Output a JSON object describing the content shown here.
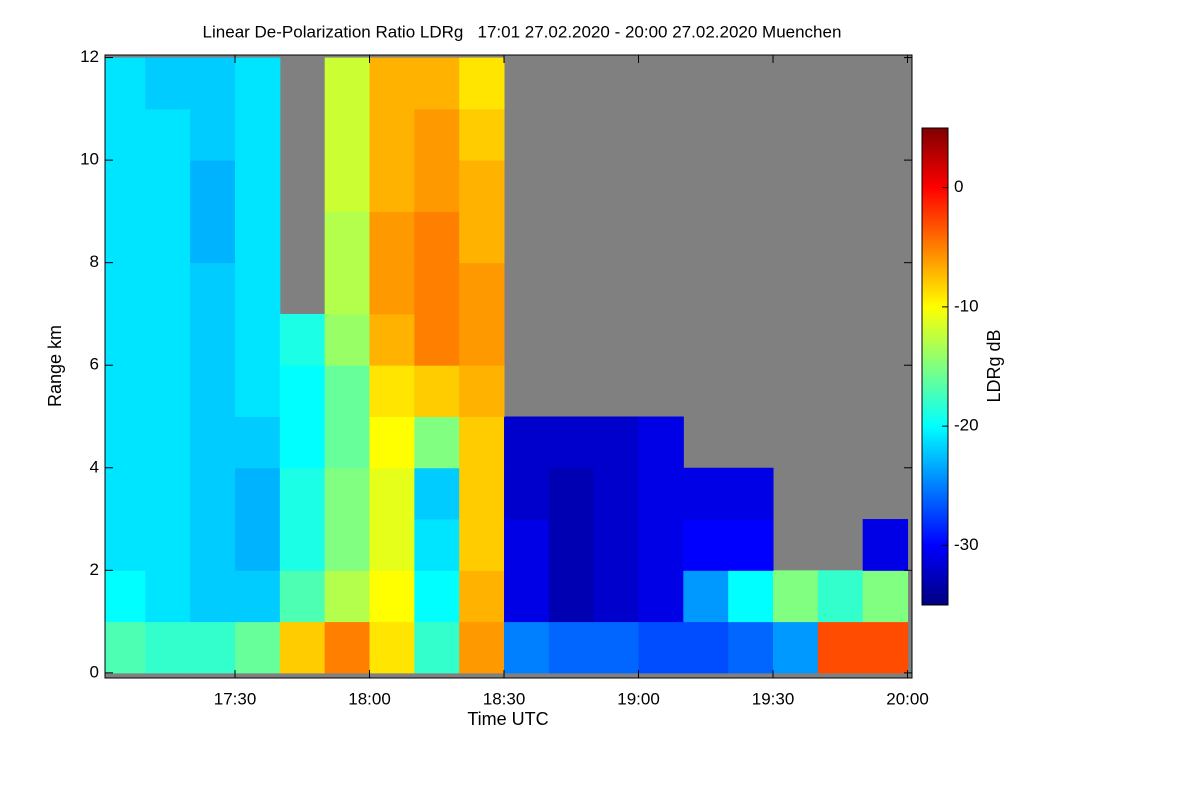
{
  "chart_data": {
    "type": "heatmap",
    "title": "Linear De-Polarization Ratio LDRg   17:01 27.02.2020 - 20:00 27.02.2020 Muenchen",
    "x_label": "Time UTC",
    "y_label": "Range km",
    "colorbar_label": "LDRg dB",
    "colormap": "jet",
    "missing_color": "#808080",
    "x": [
      1020,
      1030,
      1040,
      1050,
      1060,
      1070,
      1080,
      1090,
      1100,
      1110,
      1120,
      1130,
      1140,
      1150,
      1160,
      1170,
      1180,
      1190
    ],
    "y": [
      0,
      1,
      2,
      3,
      4,
      5,
      6,
      7,
      8,
      9,
      10,
      11
    ],
    "values": [
      [
        -17,
        -18,
        -18,
        -16,
        -8,
        -5,
        -9,
        -18,
        -6,
        -25,
        -26,
        -26,
        -27,
        -27,
        -26,
        -24,
        -3,
        -3
      ],
      [
        -20,
        -21,
        -22,
        -22,
        -17,
        -13,
        -10,
        -20,
        -7,
        -31,
        -33,
        -32,
        -31,
        -24,
        -20,
        -15,
        -18,
        -15
      ],
      [
        -21,
        -21,
        -22,
        -23,
        -19,
        -15,
        -11,
        -21,
        -8,
        -31,
        -33,
        -32,
        -31,
        -30,
        -30,
        null,
        null,
        -31
      ],
      [
        -21,
        -21,
        -22,
        -23,
        -19,
        -15,
        -11,
        -22,
        -8,
        -32,
        -33,
        -32,
        -31,
        -31,
        -31,
        null,
        null,
        null
      ],
      [
        -21,
        -21,
        -22,
        -22,
        -20,
        -16,
        -10,
        -15,
        -8,
        -32,
        -32,
        -32,
        -31,
        null,
        null,
        null,
        null,
        null
      ],
      [
        -21,
        -21,
        -22,
        -21,
        -20,
        -16,
        -9,
        -8,
        -7,
        null,
        null,
        null,
        null,
        null,
        null,
        null,
        null,
        null
      ],
      [
        -21,
        -21,
        -22,
        -21,
        -19,
        -14,
        -7,
        -5,
        -6,
        null,
        null,
        null,
        null,
        null,
        null,
        null,
        null,
        null
      ],
      [
        -21,
        -21,
        -22,
        -21,
        null,
        -13,
        -6,
        -5,
        -6,
        null,
        null,
        null,
        null,
        null,
        null,
        null,
        null,
        null
      ],
      [
        -21,
        -21,
        -23,
        -21,
        null,
        -13,
        -6,
        -5,
        -7,
        null,
        null,
        null,
        null,
        null,
        null,
        null,
        null,
        null
      ],
      [
        -21,
        -21,
        -23,
        -21,
        null,
        -12,
        -7,
        -6,
        -7,
        null,
        null,
        null,
        null,
        null,
        null,
        null,
        null,
        null
      ],
      [
        -21,
        -21,
        -22,
        -21,
        null,
        -12,
        -7,
        -6,
        -8,
        null,
        null,
        null,
        null,
        null,
        null,
        null,
        null,
        null
      ],
      [
        -21,
        -22,
        -22,
        -21,
        null,
        -12,
        -7,
        -7,
        -9,
        null,
        null,
        null,
        null,
        null,
        null,
        null,
        null,
        null
      ]
    ],
    "xlim": [
      1021,
      1201
    ],
    "xticks": [
      {
        "value": 1050,
        "label": "17:30"
      },
      {
        "value": 1080,
        "label": "18:00"
      },
      {
        "value": 1110,
        "label": "18:30"
      },
      {
        "value": 1140,
        "label": "19:00"
      },
      {
        "value": 1170,
        "label": "19:30"
      },
      {
        "value": 1200,
        "label": "20:00"
      }
    ],
    "ylim": [
      -0.1,
      12.05
    ],
    "yticks": [
      0,
      2,
      4,
      6,
      8,
      10,
      12
    ],
    "zlim": [
      -35,
      5
    ],
    "zticks": [
      0,
      -10,
      -20,
      -30
    ]
  }
}
